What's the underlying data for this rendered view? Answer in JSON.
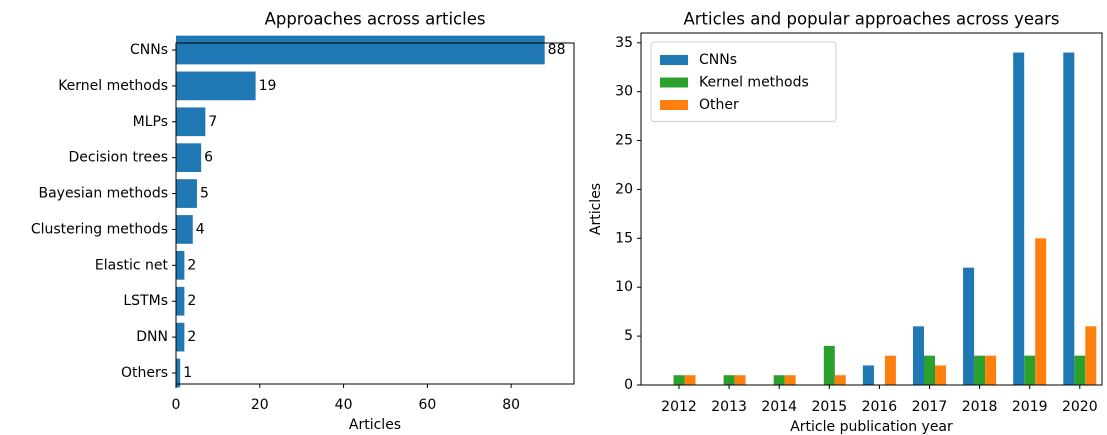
{
  "chart_data": [
    {
      "type": "barh",
      "title": "Approaches across articles",
      "xlabel": "Articles",
      "categories": [
        "CNNs",
        "Kernel methods",
        "MLPs",
        "Decision trees",
        "Bayesian methods",
        "Clustering methods",
        "Elastic net",
        "LSTMs",
        "DNN",
        "Others"
      ],
      "values": [
        88,
        19,
        7,
        6,
        5,
        4,
        2,
        2,
        2,
        1
      ],
      "color": "#1f77b4",
      "xlim": [
        0,
        95
      ],
      "xticks": [
        0,
        20,
        40,
        60,
        80
      ]
    },
    {
      "type": "bar",
      "title": "Articles and popular approaches across years",
      "xlabel": "Article publication year",
      "ylabel": "Articles",
      "categories": [
        "2012",
        "2013",
        "2014",
        "2015",
        "2016",
        "2017",
        "2018",
        "2019",
        "2020"
      ],
      "series": [
        {
          "name": "CNNs",
          "color": "#1f77b4",
          "values": [
            0,
            0,
            0,
            0,
            2,
            6,
            12,
            34,
            34
          ]
        },
        {
          "name": "Kernel methods",
          "color": "#2ca02c",
          "values": [
            1,
            1,
            1,
            4,
            0,
            3,
            3,
            3,
            3
          ]
        },
        {
          "name": "Other",
          "color": "#ff7f0e",
          "values": [
            1,
            1,
            1,
            1,
            3,
            2,
            3,
            15,
            6
          ]
        }
      ],
      "ylim": [
        0,
        36
      ],
      "yticks": [
        0,
        5,
        10,
        15,
        20,
        25,
        30,
        35
      ],
      "legend": "upper left"
    }
  ]
}
